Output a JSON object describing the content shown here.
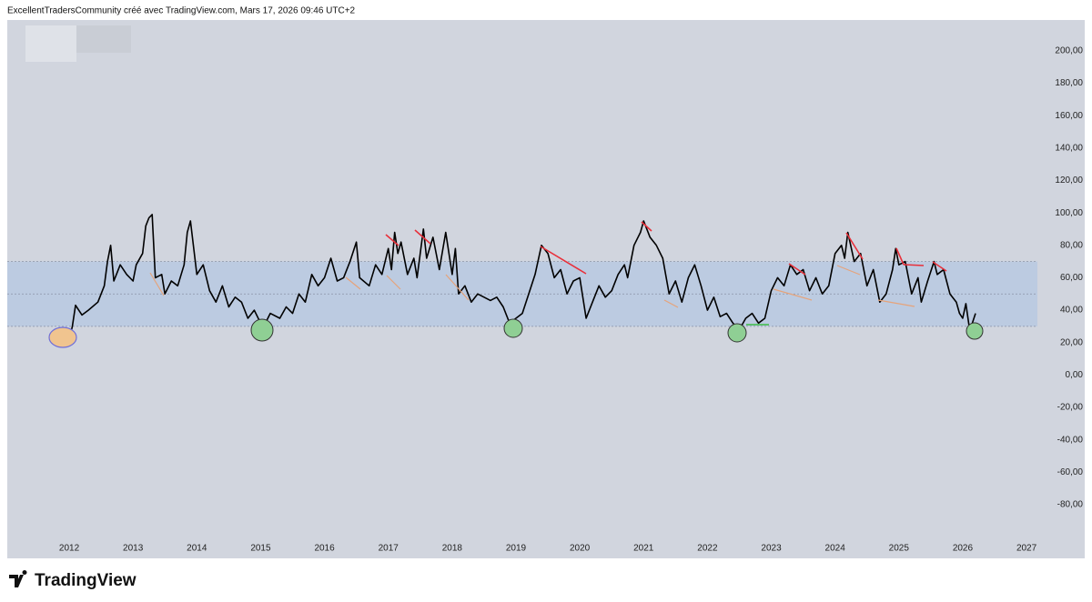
{
  "header": "ExcellentTradersCommunity créé avec TradingView.com, Mars 17, 2026 09:46 UTC+2",
  "logo": "TradingView",
  "chart_data": {
    "type": "line",
    "x": [
      2012.0,
      2012.05,
      2012.1,
      2012.2,
      2012.3,
      2012.45,
      2012.55,
      2012.6,
      2012.65,
      2012.7,
      2012.8,
      2012.9,
      2013.0,
      2013.05,
      2013.15,
      2013.2,
      2013.25,
      2013.3,
      2013.35,
      2013.45,
      2013.5,
      2013.6,
      2013.7,
      2013.8,
      2013.85,
      2013.9,
      2014.0,
      2014.1,
      2014.2,
      2014.3,
      2014.4,
      2014.5,
      2014.6,
      2014.7,
      2014.8,
      2014.9,
      2015.0,
      2015.05,
      2015.15,
      2015.3,
      2015.4,
      2015.5,
      2015.6,
      2015.7,
      2015.8,
      2015.9,
      2016.0,
      2016.1,
      2016.2,
      2016.3,
      2016.4,
      2016.5,
      2016.55,
      2016.7,
      2016.8,
      2016.9,
      2017.0,
      2017.05,
      2017.1,
      2017.15,
      2017.2,
      2017.3,
      2017.4,
      2017.45,
      2017.55,
      2017.6,
      2017.7,
      2017.8,
      2017.9,
      2018.0,
      2018.05,
      2018.1,
      2018.2,
      2018.3,
      2018.4,
      2018.5,
      2018.6,
      2018.7,
      2018.8,
      2018.9,
      2019.0,
      2019.1,
      2019.2,
      2019.3,
      2019.4,
      2019.5,
      2019.6,
      2019.7,
      2019.8,
      2019.9,
      2020.0,
      2020.1,
      2020.2,
      2020.3,
      2020.4,
      2020.5,
      2020.6,
      2020.7,
      2020.75,
      2020.85,
      2020.95,
      2021.0,
      2021.1,
      2021.2,
      2021.3,
      2021.4,
      2021.5,
      2021.6,
      2021.7,
      2021.8,
      2021.9,
      2022.0,
      2022.1,
      2022.2,
      2022.3,
      2022.4,
      2022.5,
      2022.6,
      2022.7,
      2022.8,
      2022.9,
      2023.0,
      2023.1,
      2023.2,
      2023.3,
      2023.4,
      2023.5,
      2023.6,
      2023.7,
      2023.8,
      2023.9,
      2024.0,
      2024.1,
      2024.15,
      2024.2,
      2024.3,
      2024.4,
      2024.5,
      2024.6,
      2024.7,
      2024.8,
      2024.9,
      2024.95,
      2025.0,
      2025.1,
      2025.2,
      2025.3,
      2025.35,
      2025.45,
      2025.55,
      2025.6,
      2025.7,
      2025.8,
      2025.9,
      2025.95,
      2026.0,
      2026.05,
      2026.1,
      2026.15,
      2026.2
    ],
    "values": [
      22,
      30,
      43,
      37,
      40,
      45,
      55,
      70,
      80,
      58,
      68,
      62,
      58,
      68,
      75,
      92,
      97,
      99,
      60,
      62,
      50,
      58,
      55,
      68,
      88,
      95,
      62,
      68,
      52,
      45,
      55,
      42,
      48,
      45,
      35,
      40,
      32,
      30,
      38,
      35,
      42,
      38,
      50,
      45,
      62,
      55,
      60,
      72,
      58,
      60,
      70,
      82,
      60,
      55,
      68,
      62,
      78,
      65,
      88,
      75,
      82,
      62,
      72,
      60,
      90,
      72,
      85,
      65,
      88,
      62,
      78,
      50,
      55,
      45,
      50,
      48,
      46,
      48,
      42,
      32,
      35,
      38,
      50,
      62,
      80,
      75,
      60,
      65,
      50,
      58,
      60,
      35,
      45,
      55,
      48,
      52,
      62,
      68,
      60,
      80,
      88,
      95,
      85,
      80,
      72,
      50,
      58,
      45,
      60,
      68,
      55,
      40,
      48,
      36,
      38,
      32,
      28,
      35,
      38,
      32,
      35,
      52,
      60,
      55,
      68,
      62,
      65,
      52,
      60,
      50,
      55,
      75,
      80,
      72,
      88,
      70,
      75,
      55,
      65,
      45,
      50,
      65,
      78,
      68,
      70,
      50,
      60,
      45,
      58,
      70,
      62,
      65,
      50,
      45,
      38,
      35,
      44,
      30,
      32,
      38
    ],
    "color": "#000000",
    "band": {
      "lower": 30,
      "middle": 50,
      "upper": 70,
      "color": "#b8c9e2"
    },
    "xlim": [
      2011.03,
      2027.17
    ],
    "ylim": [
      -112,
      219
    ],
    "xticks": [
      2012,
      2013,
      2014,
      2015,
      2016,
      2017,
      2018,
      2019,
      2020,
      2021,
      2022,
      2023,
      2024,
      2025,
      2026,
      2027
    ],
    "yticks": [
      {
        "value": 200,
        "label": "200,00"
      },
      {
        "value": 180,
        "label": "180,00"
      },
      {
        "value": 160,
        "label": "160,00"
      },
      {
        "value": 140,
        "label": "140,00"
      },
      {
        "value": 120,
        "label": "120,00"
      },
      {
        "value": 100,
        "label": "100,00"
      },
      {
        "value": 80,
        "label": "80,00"
      },
      {
        "value": 60,
        "label": "60,00"
      },
      {
        "value": 40,
        "label": "40,00"
      },
      {
        "value": 20,
        "label": "20,00"
      },
      {
        "value": 0,
        "label": "0,00"
      },
      {
        "value": -20,
        "label": "-20,00"
      },
      {
        "value": -40,
        "label": "-40,00"
      },
      {
        "value": -60,
        "label": "-60,00"
      },
      {
        "value": -80,
        "label": "-80,00"
      }
    ],
    "grid": false
  }
}
